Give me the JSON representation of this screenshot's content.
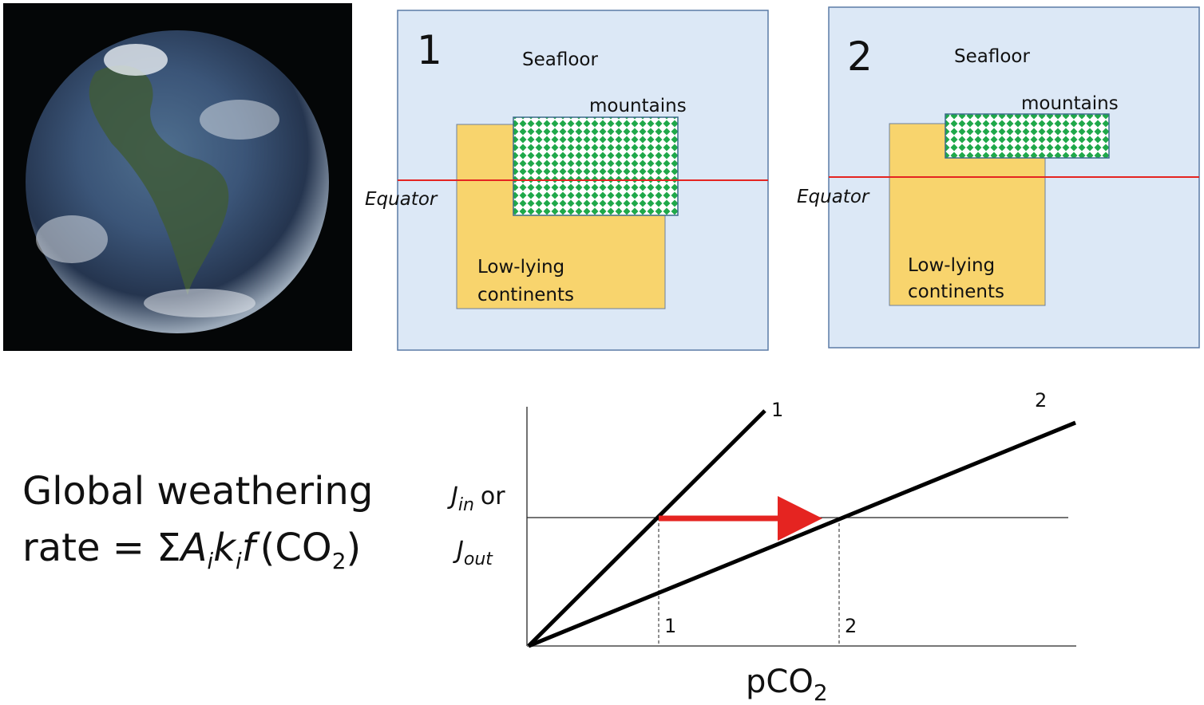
{
  "panels": [
    {
      "number": "1",
      "seafloor": "Seafloor",
      "mountains": "mountains",
      "equator": "Equator",
      "low_lying": [
        "Low-lying",
        "continents"
      ]
    },
    {
      "number": "2",
      "seafloor": "Seafloor",
      "mountains": "mountains",
      "equator": "Equator",
      "low_lying": [
        "Low-lying",
        "continents"
      ]
    }
  ],
  "formula": {
    "line1": "Global weathering",
    "line2": [
      "rate = ",
      "Σ",
      "A",
      "i",
      "k",
      "i",
      "f",
      "(CO",
      "2",
      ")"
    ]
  },
  "graph": {
    "line_labels": [
      "1",
      "2"
    ],
    "y_label": [
      "J",
      "in",
      "or",
      "J",
      "out"
    ],
    "x_label": [
      "pCO",
      "2"
    ],
    "marker_labels": [
      "1",
      "2"
    ]
  }
}
